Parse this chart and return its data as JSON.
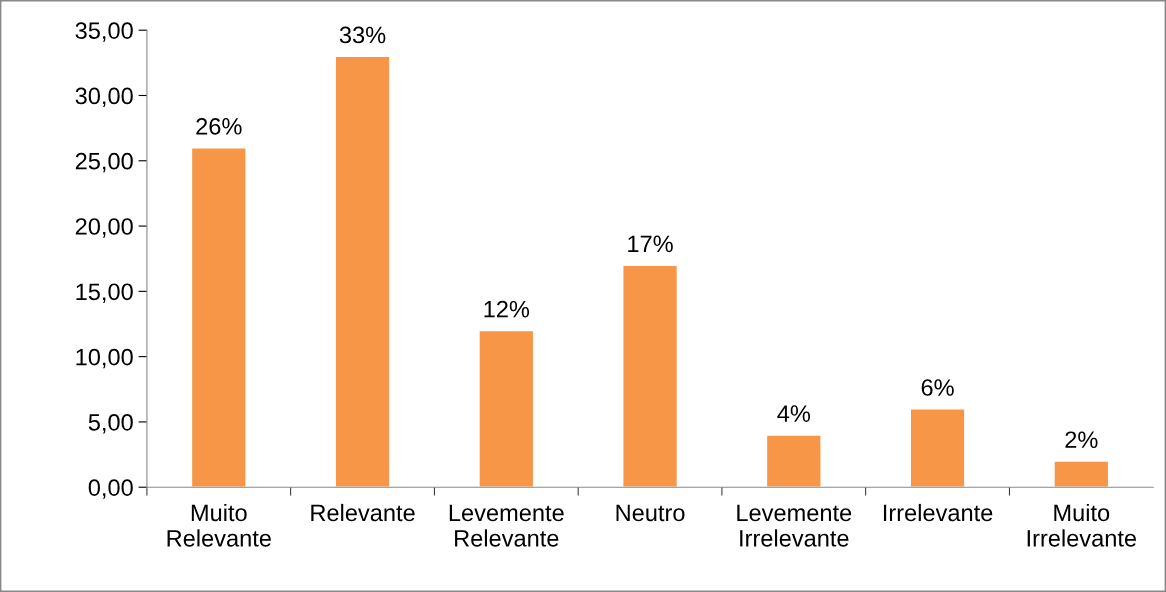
{
  "chart_data": {
    "type": "bar",
    "categories": [
      "Muito\nRelevante",
      "Relevante",
      "Levemente\nRelevante",
      "Neutro",
      "Levemente\nIrrelevante",
      "Irrelevante",
      "Muito\nIrrelevante"
    ],
    "values": [
      26,
      33,
      12,
      17,
      4,
      6,
      2
    ],
    "value_labels": [
      "26%",
      "33%",
      "12%",
      "17%",
      "4%",
      "6%",
      "2%"
    ],
    "color": "#f79646",
    "ylim": [
      0,
      35
    ],
    "yticks": [
      {
        "value": 0,
        "label": "0,00"
      },
      {
        "value": 5,
        "label": "5,00"
      },
      {
        "value": 10,
        "label": "10,00"
      },
      {
        "value": 15,
        "label": "15,00"
      },
      {
        "value": 20,
        "label": "20,00"
      },
      {
        "value": 25,
        "label": "25,00"
      },
      {
        "value": 30,
        "label": "30,00"
      },
      {
        "value": 35,
        "label": "35,00"
      }
    ],
    "grid": false,
    "legend": false
  }
}
